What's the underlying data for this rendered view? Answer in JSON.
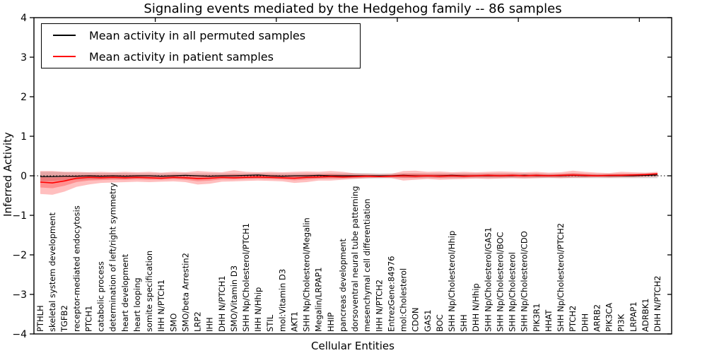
{
  "chart_data": {
    "type": "line",
    "title": "Signaling events mediated by the Hedgehog family -- 86 samples",
    "xlabel": "Cellular Entities",
    "ylabel": "Inferred Activity",
    "ylim": [
      -4,
      4
    ],
    "yticks": [
      4,
      3,
      2,
      1,
      0,
      -1,
      -2,
      -3,
      -4
    ],
    "x_major_ticks": [
      10,
      20,
      30,
      40,
      50
    ],
    "grid": false,
    "legend_position": "upper left",
    "zero_line": "dotted",
    "colors": {
      "permuted_line": "#000000",
      "patient_line": "#ff0000",
      "permuted_band": "#aaaaaa",
      "patient_band": "#ff0000"
    },
    "categories": [
      "PTHLH",
      "skeletal system development",
      "TGFB2",
      "receptor-mediated endocytosis",
      "PTCH1",
      "catabolic process",
      "determination of left/right symmetry",
      "heart development",
      "heart looping",
      "somite specification",
      "IHH N/PTCH1",
      "SMO",
      "SMO/beta Arrestin2",
      "LRP2",
      "IHH",
      "DHH N/PTCH1",
      "SMO/Vitamin D3",
      "SHH Np/Cholesterol/PTCH1",
      "IHH N/Hhip",
      "STIL",
      "mol:Vitamin D3",
      "AKT1",
      "SHH Np/Cholesterol/Megalin",
      "Megalin/LRPAP1",
      "HHIP",
      "pancreas development",
      "dorsoventral neural tube patterning",
      "mesenchymal cell differentiation",
      "IHH N/PTCH2",
      "EntrezGene:84976",
      "mol:Cholesterol",
      "CDON",
      "GAS1",
      "BOC",
      "SHH Np/Cholesterol/Hhip",
      "SHH",
      "DHH N/Hhip",
      "SHH Np/Cholesterol/GAS1",
      "SHH Np/Cholesterol/BOC",
      "SHH Np/Cholesterol",
      "SHH Np/Cholesterol/CDO",
      "PIK3R1",
      "HHAT",
      "SHH Np/Cholesterol/PTCH2",
      "PTCH2",
      "DHH",
      "ARRB2",
      "PIK3CA",
      "PI3K",
      "LRPAP1",
      "ADRBK1",
      "DHH N/PTCH2"
    ],
    "series": [
      {
        "name": "Mean activity in all permuted samples",
        "color": "#000000",
        "values": [
          -0.02,
          -0.02,
          -0.01,
          -0.01,
          0.0,
          -0.01,
          0.0,
          -0.01,
          0.0,
          0.0,
          -0.01,
          0.0,
          0.01,
          0.0,
          -0.01,
          0.0,
          0.0,
          0.01,
          0.02,
          0.0,
          -0.01,
          0.0,
          0.0,
          0.01,
          0.0,
          0.0,
          0.0,
          0.0,
          0.0,
          0.0,
          0.01,
          0.0,
          0.0,
          0.0,
          0.01,
          0.0,
          0.0,
          0.0,
          0.0,
          0.0,
          0.01,
          0.0,
          0.0,
          0.0,
          0.01,
          0.0,
          0.0,
          0.0,
          0.0,
          0.0,
          0.01,
          0.02
        ],
        "band_upper": [
          0.1,
          0.1,
          0.09,
          0.08,
          0.08,
          0.07,
          0.07,
          0.07,
          0.06,
          0.06,
          0.06,
          0.06,
          0.07,
          0.06,
          0.06,
          0.06,
          0.06,
          0.06,
          0.07,
          0.06,
          0.06,
          0.06,
          0.06,
          0.06,
          0.06,
          0.06,
          0.07,
          0.07,
          0.06,
          0.06,
          0.06,
          0.06,
          0.06,
          0.06,
          0.06,
          0.06,
          0.06,
          0.06,
          0.06,
          0.06,
          0.06,
          0.06,
          0.05,
          0.05,
          0.06,
          0.05,
          0.05,
          0.05,
          0.05,
          0.05,
          0.06,
          0.06
        ],
        "band_lower": [
          -0.14,
          -0.13,
          -0.11,
          -0.1,
          -0.09,
          -0.08,
          -0.08,
          -0.08,
          -0.07,
          -0.07,
          -0.07,
          -0.07,
          -0.08,
          -0.07,
          -0.07,
          -0.07,
          -0.07,
          -0.07,
          -0.07,
          -0.07,
          -0.07,
          -0.07,
          -0.07,
          -0.07,
          -0.07,
          -0.07,
          -0.07,
          -0.07,
          -0.07,
          -0.06,
          -0.06,
          -0.06,
          -0.06,
          -0.06,
          -0.06,
          -0.06,
          -0.06,
          -0.06,
          -0.06,
          -0.06,
          -0.06,
          -0.06,
          -0.06,
          -0.06,
          -0.06,
          -0.06,
          -0.06,
          -0.06,
          -0.06,
          -0.06,
          -0.06,
          -0.06
        ]
      },
      {
        "name": "Mean activity in patient samples",
        "color": "#ff0000",
        "values": [
          -0.16,
          -0.18,
          -0.13,
          -0.06,
          -0.04,
          -0.05,
          -0.04,
          -0.05,
          -0.04,
          -0.05,
          -0.06,
          -0.04,
          -0.05,
          -0.07,
          -0.06,
          -0.04,
          -0.05,
          -0.04,
          -0.03,
          -0.04,
          -0.05,
          -0.06,
          -0.04,
          -0.03,
          -0.02,
          -0.03,
          -0.02,
          -0.01,
          -0.02,
          -0.01,
          0.0,
          -0.01,
          0.0,
          -0.01,
          0.0,
          -0.01,
          0.0,
          0.01,
          0.0,
          0.01,
          0.0,
          0.01,
          0.0,
          0.01,
          0.02,
          0.01,
          0.0,
          0.01,
          0.01,
          0.02,
          0.03,
          0.05
        ],
        "band_upper": [
          0.12,
          0.12,
          0.1,
          0.1,
          0.09,
          0.1,
          0.09,
          0.1,
          0.09,
          0.1,
          0.08,
          0.1,
          0.09,
          0.12,
          0.1,
          0.09,
          0.14,
          0.1,
          0.09,
          0.1,
          0.09,
          0.1,
          0.11,
          0.1,
          0.12,
          0.1,
          0.06,
          0.05,
          0.04,
          0.05,
          0.12,
          0.13,
          0.1,
          0.11,
          0.09,
          0.1,
          0.09,
          0.1,
          0.11,
          0.1,
          0.09,
          0.1,
          0.08,
          0.09,
          0.13,
          0.1,
          0.08,
          0.07,
          0.1,
          0.09,
          0.08,
          0.1
        ],
        "band_lower": [
          -0.46,
          -0.48,
          -0.4,
          -0.28,
          -0.22,
          -0.18,
          -0.17,
          -0.16,
          -0.15,
          -0.16,
          -0.15,
          -0.14,
          -0.16,
          -0.22,
          -0.2,
          -0.15,
          -0.14,
          -0.13,
          -0.12,
          -0.13,
          -0.14,
          -0.18,
          -0.16,
          -0.12,
          -0.12,
          -0.1,
          -0.08,
          -0.06,
          -0.05,
          -0.06,
          -0.12,
          -0.1,
          -0.08,
          -0.1,
          -0.09,
          -0.08,
          -0.07,
          -0.08,
          -0.07,
          -0.06,
          -0.07,
          -0.06,
          -0.05,
          -0.06,
          -0.05,
          -0.05,
          -0.04,
          -0.05,
          -0.04,
          -0.04,
          -0.03,
          -0.02
        ]
      }
    ]
  }
}
